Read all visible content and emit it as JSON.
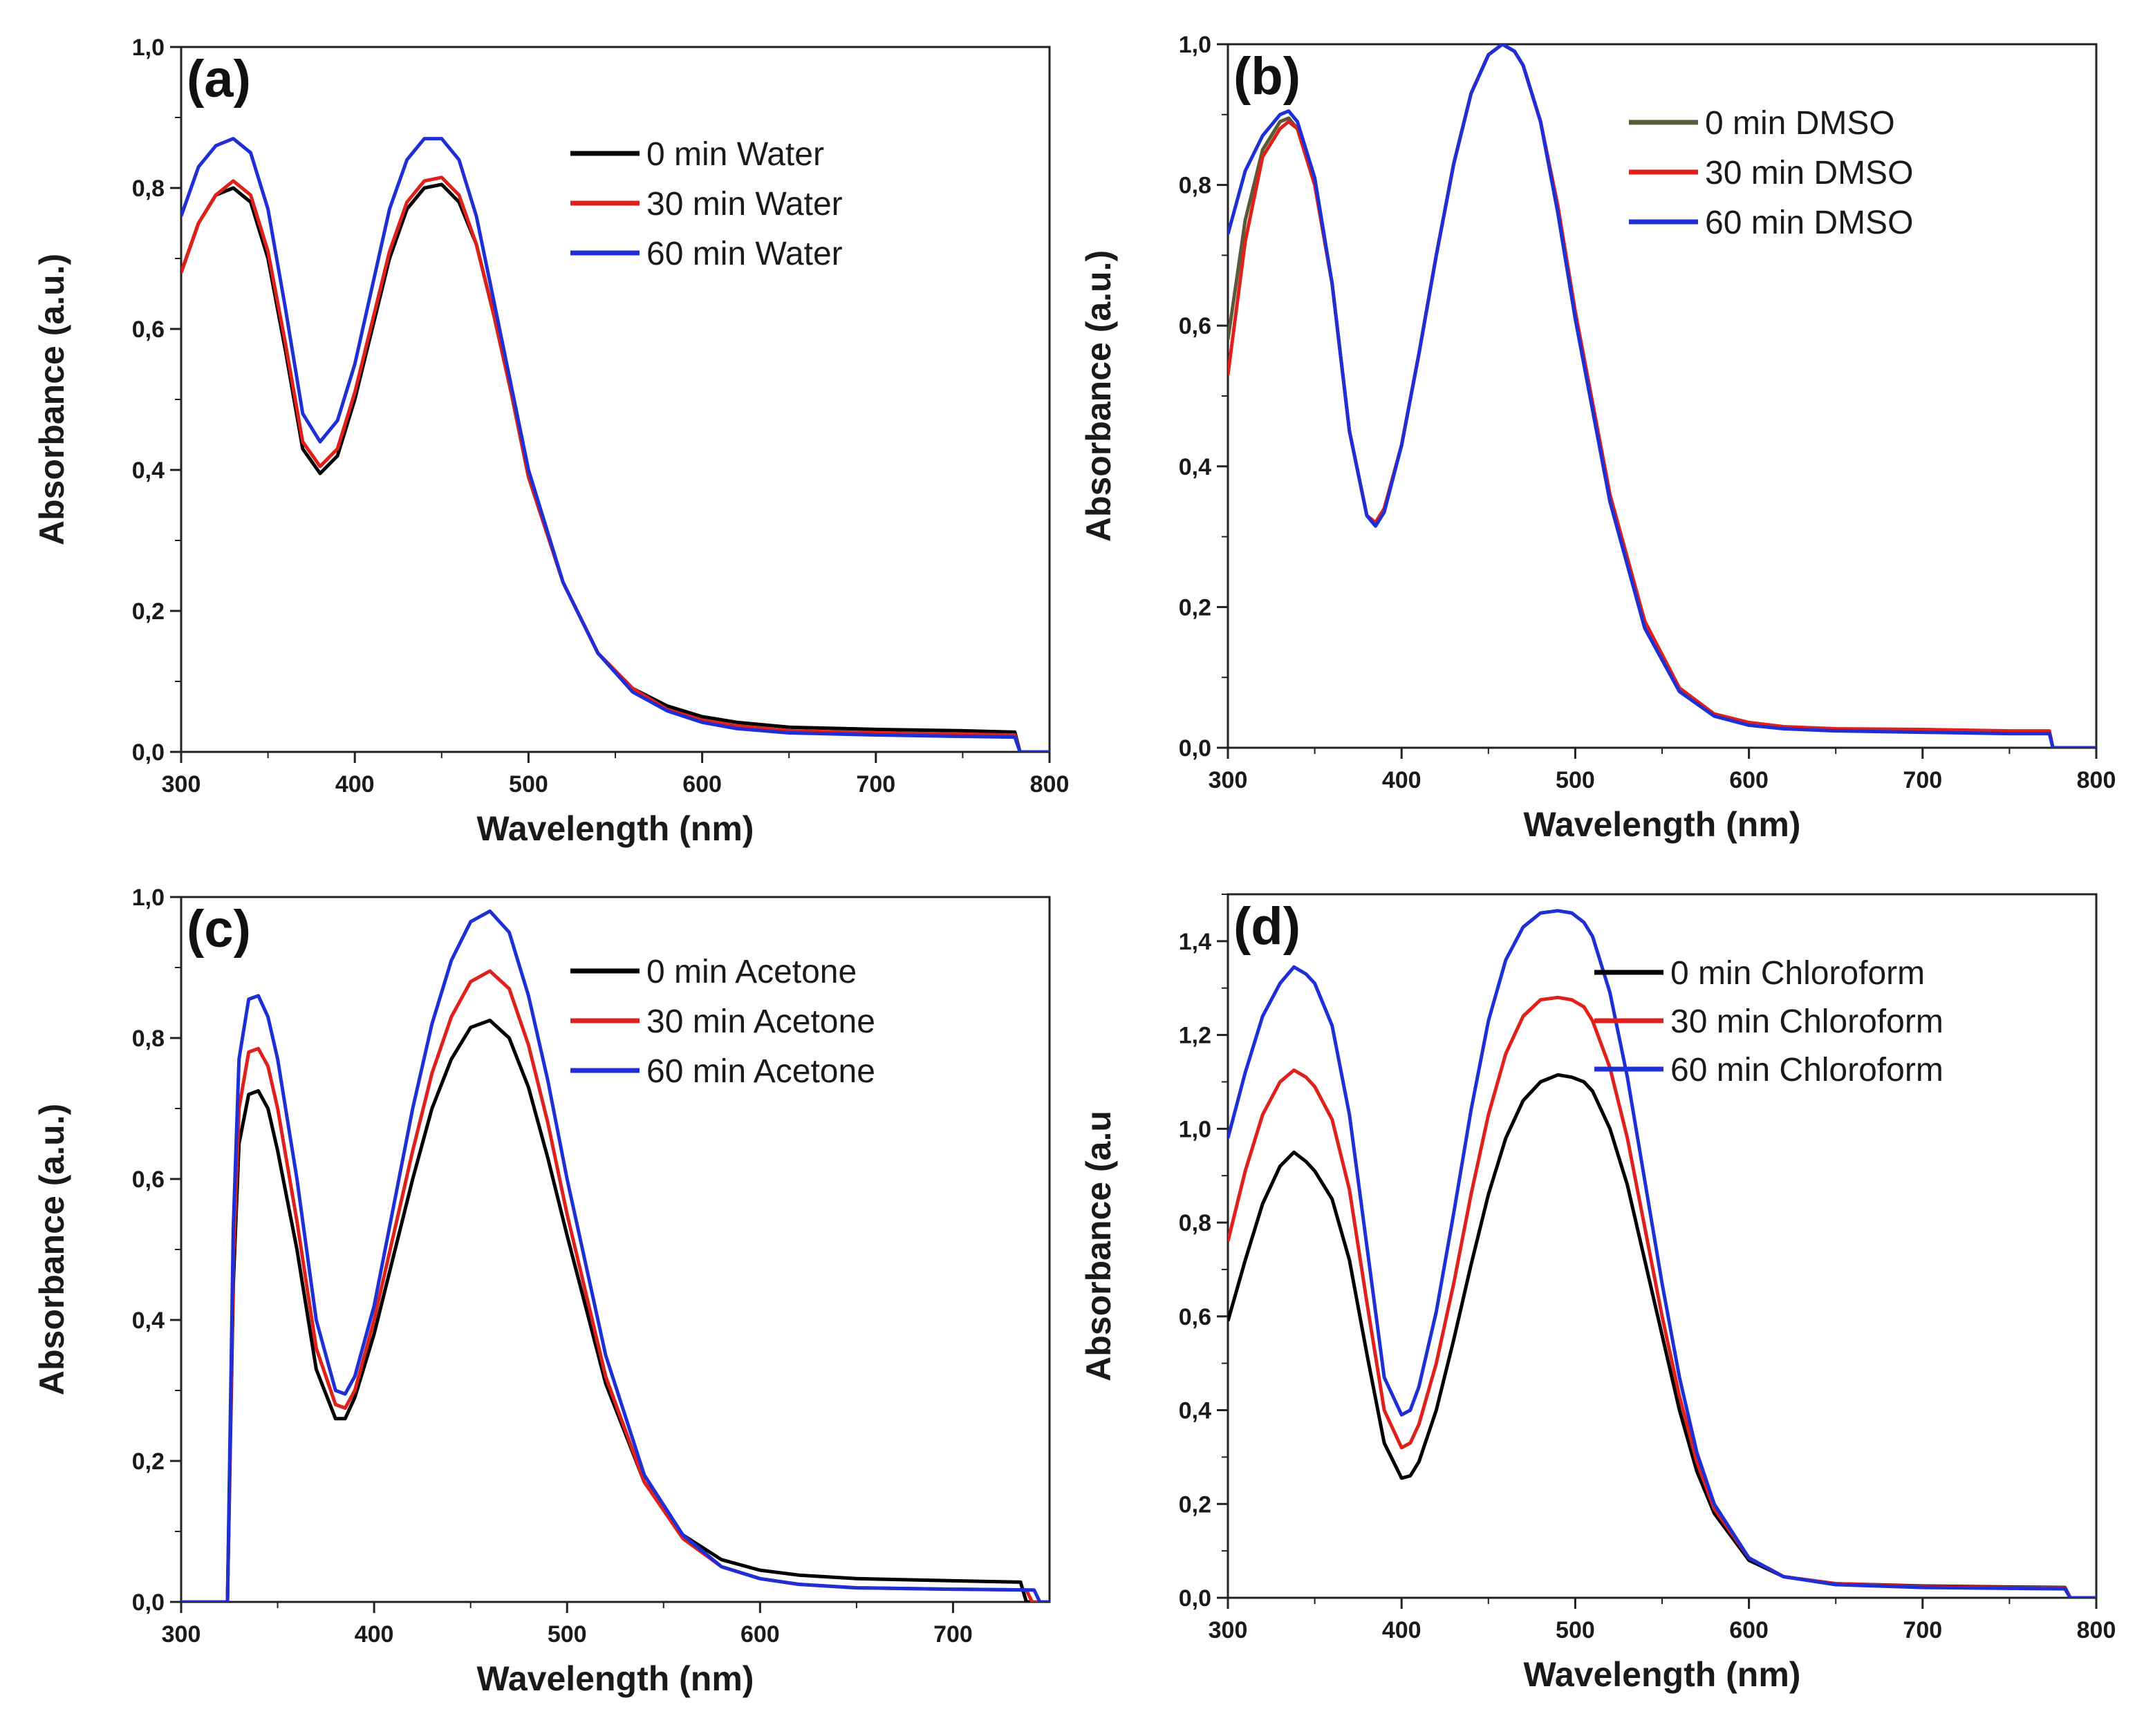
{
  "chart_data": [
    {
      "type": "line",
      "panel_label": "(a)",
      "xlabel": "Wavelength (nm)",
      "ylabel": "Absorbance (a.u.)",
      "xlim": [
        300,
        800
      ],
      "ylim": [
        0,
        1.0
      ],
      "x_ticks": [
        "300",
        "400",
        "500",
        "600",
        "700",
        "800"
      ],
      "x_tick_values": [
        300,
        400,
        500,
        600,
        700,
        800
      ],
      "y_ticks": [
        "0,0",
        "0,2",
        "0,4",
        "0,6",
        "0,8",
        "1,0"
      ],
      "y_tick_values": [
        0,
        0.2,
        0.4,
        0.6,
        0.8,
        1.0
      ],
      "legend_position": "top-right",
      "series": [
        {
          "name": "0 min Water",
          "color": "#000000",
          "x": [
            300,
            310,
            320,
            330,
            340,
            350,
            360,
            370,
            380,
            390,
            400,
            410,
            420,
            430,
            440,
            450,
            460,
            470,
            480,
            490,
            500,
            520,
            540,
            560,
            580,
            600,
            620,
            650,
            700,
            750,
            780,
            783,
            800
          ],
          "values": [
            0.68,
            0.75,
            0.79,
            0.8,
            0.78,
            0.7,
            0.57,
            0.43,
            0.395,
            0.42,
            0.5,
            0.6,
            0.7,
            0.77,
            0.8,
            0.805,
            0.78,
            0.72,
            0.62,
            0.51,
            0.39,
            0.24,
            0.14,
            0.09,
            0.065,
            0.05,
            0.042,
            0.035,
            0.032,
            0.03,
            0.028,
            0.0,
            0.0
          ]
        },
        {
          "name": "30 min Water",
          "color": "#e0201b",
          "x": [
            300,
            310,
            320,
            330,
            340,
            350,
            360,
            370,
            380,
            390,
            400,
            410,
            420,
            430,
            440,
            450,
            460,
            470,
            480,
            490,
            500,
            520,
            540,
            560,
            580,
            600,
            620,
            650,
            700,
            750,
            780,
            783,
            800
          ],
          "values": [
            0.68,
            0.75,
            0.79,
            0.81,
            0.79,
            0.71,
            0.58,
            0.44,
            0.405,
            0.43,
            0.51,
            0.61,
            0.71,
            0.78,
            0.81,
            0.815,
            0.79,
            0.72,
            0.62,
            0.51,
            0.39,
            0.24,
            0.14,
            0.09,
            0.06,
            0.045,
            0.037,
            0.03,
            0.027,
            0.025,
            0.024,
            0.0,
            0.0
          ]
        },
        {
          "name": "60 min Water",
          "color": "#1f2fd6",
          "x": [
            300,
            310,
            320,
            330,
            340,
            350,
            360,
            370,
            380,
            390,
            400,
            410,
            420,
            430,
            440,
            450,
            460,
            470,
            480,
            490,
            500,
            520,
            540,
            560,
            580,
            600,
            620,
            650,
            700,
            750,
            780,
            783,
            800
          ],
          "values": [
            0.76,
            0.83,
            0.86,
            0.87,
            0.85,
            0.77,
            0.63,
            0.48,
            0.44,
            0.47,
            0.55,
            0.66,
            0.77,
            0.84,
            0.87,
            0.87,
            0.84,
            0.76,
            0.64,
            0.52,
            0.4,
            0.24,
            0.14,
            0.085,
            0.058,
            0.042,
            0.033,
            0.027,
            0.024,
            0.022,
            0.021,
            0.0,
            0.0
          ]
        }
      ]
    },
    {
      "type": "line",
      "panel_label": "(b)",
      "xlabel": "Wavelength (nm)",
      "ylabel": "Absorbance (a.u.)",
      "xlim": [
        300,
        800
      ],
      "ylim": [
        0,
        1.0
      ],
      "x_ticks": [
        "300",
        "400",
        "500",
        "600",
        "700",
        "800"
      ],
      "x_tick_values": [
        300,
        400,
        500,
        600,
        700,
        800
      ],
      "y_ticks": [
        "0,0",
        "0,2",
        "0,4",
        "0,6",
        "0,8",
        "1,0"
      ],
      "y_tick_values": [
        0,
        0.2,
        0.4,
        0.6,
        0.8,
        1.0
      ],
      "legend_position": "top-right",
      "series": [
        {
          "name": "0 min DMSO",
          "color": "#5a5a3a",
          "x": [
            300,
            310,
            320,
            330,
            335,
            340,
            350,
            360,
            370,
            380,
            385,
            390,
            400,
            410,
            420,
            430,
            440,
            450,
            458,
            465,
            470,
            480,
            490,
            500,
            520,
            540,
            560,
            580,
            600,
            620,
            650,
            700,
            750,
            773,
            775,
            800
          ],
          "values": [
            0.58,
            0.75,
            0.85,
            0.89,
            0.895,
            0.88,
            0.8,
            0.66,
            0.45,
            0.33,
            0.32,
            0.34,
            0.43,
            0.56,
            0.7,
            0.83,
            0.93,
            0.985,
            1.0,
            0.99,
            0.97,
            0.89,
            0.76,
            0.61,
            0.35,
            0.17,
            0.08,
            0.045,
            0.033,
            0.028,
            0.025,
            0.024,
            0.022,
            0.022,
            0.0,
            0.0
          ]
        },
        {
          "name": "30 min DMSO",
          "color": "#e0201b",
          "x": [
            300,
            310,
            320,
            330,
            335,
            340,
            350,
            360,
            370,
            380,
            385,
            390,
            400,
            410,
            420,
            430,
            440,
            450,
            458,
            465,
            470,
            480,
            490,
            500,
            520,
            540,
            560,
            580,
            600,
            620,
            650,
            700,
            750,
            773,
            775,
            800
          ],
          "values": [
            0.53,
            0.72,
            0.84,
            0.88,
            0.89,
            0.88,
            0.8,
            0.66,
            0.45,
            0.33,
            0.32,
            0.34,
            0.43,
            0.56,
            0.7,
            0.83,
            0.93,
            0.985,
            1.0,
            0.99,
            0.97,
            0.89,
            0.77,
            0.62,
            0.36,
            0.18,
            0.085,
            0.048,
            0.036,
            0.03,
            0.027,
            0.026,
            0.024,
            0.024,
            0.0,
            0.0
          ]
        },
        {
          "name": "60 min DMSO",
          "color": "#1f2fd6",
          "x": [
            300,
            310,
            320,
            330,
            335,
            340,
            350,
            360,
            370,
            380,
            385,
            390,
            400,
            410,
            420,
            430,
            440,
            450,
            458,
            465,
            470,
            480,
            490,
            500,
            520,
            540,
            560,
            580,
            600,
            620,
            650,
            700,
            750,
            773,
            775,
            800
          ],
          "values": [
            0.73,
            0.82,
            0.87,
            0.9,
            0.905,
            0.89,
            0.81,
            0.66,
            0.45,
            0.33,
            0.315,
            0.335,
            0.43,
            0.56,
            0.7,
            0.83,
            0.93,
            0.985,
            1.0,
            0.99,
            0.97,
            0.89,
            0.76,
            0.61,
            0.35,
            0.17,
            0.08,
            0.045,
            0.032,
            0.027,
            0.024,
            0.022,
            0.02,
            0.02,
            0.0,
            0.0
          ]
        }
      ]
    },
    {
      "type": "line",
      "panel_label": "(c)",
      "xlabel": "Wavelength (nm)",
      "ylabel": "Absorbance (a.u.)",
      "xlim": [
        300,
        750
      ],
      "ylim": [
        0,
        1.0
      ],
      "x_ticks": [
        "300",
        "400",
        "500",
        "600",
        "700"
      ],
      "x_tick_values": [
        300,
        400,
        500,
        600,
        700
      ],
      "y_ticks": [
        "0,0",
        "0,2",
        "0,4",
        "0,6",
        "0,8",
        "1,0"
      ],
      "y_tick_values": [
        0,
        0.2,
        0.4,
        0.6,
        0.8,
        1.0
      ],
      "legend_position": "top-right",
      "series": [
        {
          "name": "0 min Acetone",
          "color": "#000000",
          "x": [
            300,
            324,
            327,
            330,
            335,
            340,
            345,
            350,
            360,
            370,
            380,
            385,
            390,
            400,
            410,
            420,
            430,
            440,
            450,
            460,
            470,
            480,
            490,
            500,
            520,
            540,
            560,
            580,
            600,
            620,
            650,
            700,
            735,
            738,
            750
          ],
          "values": [
            0.0,
            0.0,
            0.45,
            0.65,
            0.72,
            0.725,
            0.7,
            0.64,
            0.5,
            0.33,
            0.26,
            0.26,
            0.29,
            0.38,
            0.49,
            0.6,
            0.7,
            0.77,
            0.815,
            0.825,
            0.8,
            0.73,
            0.63,
            0.52,
            0.31,
            0.17,
            0.095,
            0.06,
            0.045,
            0.038,
            0.033,
            0.03,
            0.028,
            0.0,
            0.0
          ]
        },
        {
          "name": "30 min Acetone",
          "color": "#e0201b",
          "x": [
            300,
            324,
            327,
            330,
            335,
            340,
            345,
            350,
            360,
            370,
            380,
            385,
            390,
            400,
            410,
            420,
            430,
            440,
            450,
            460,
            470,
            480,
            490,
            500,
            520,
            540,
            560,
            580,
            600,
            620,
            650,
            700,
            738,
            741,
            750
          ],
          "values": [
            0.0,
            0.0,
            0.48,
            0.7,
            0.78,
            0.785,
            0.76,
            0.7,
            0.54,
            0.36,
            0.28,
            0.275,
            0.3,
            0.4,
            0.52,
            0.64,
            0.75,
            0.83,
            0.88,
            0.895,
            0.87,
            0.79,
            0.68,
            0.55,
            0.32,
            0.17,
            0.09,
            0.05,
            0.033,
            0.025,
            0.02,
            0.018,
            0.017,
            0.0,
            0.0
          ]
        },
        {
          "name": "60 min Acetone",
          "color": "#1f2fd6",
          "x": [
            300,
            324,
            327,
            330,
            335,
            340,
            345,
            350,
            360,
            370,
            380,
            385,
            390,
            400,
            410,
            420,
            430,
            440,
            450,
            460,
            470,
            480,
            490,
            500,
            520,
            540,
            560,
            580,
            600,
            620,
            650,
            700,
            742,
            745,
            750
          ],
          "values": [
            0.0,
            0.0,
            0.53,
            0.77,
            0.855,
            0.86,
            0.83,
            0.77,
            0.6,
            0.4,
            0.3,
            0.295,
            0.32,
            0.42,
            0.56,
            0.7,
            0.82,
            0.91,
            0.965,
            0.98,
            0.95,
            0.86,
            0.74,
            0.6,
            0.35,
            0.18,
            0.095,
            0.05,
            0.033,
            0.025,
            0.02,
            0.018,
            0.017,
            0.0,
            0.0
          ]
        }
      ]
    },
    {
      "type": "line",
      "panel_label": "(d)",
      "xlabel": "Wavelength (nm)",
      "ylabel": "Absorbance (a.u",
      "xlim": [
        300,
        800
      ],
      "ylim": [
        0,
        1.5
      ],
      "x_ticks": [
        "300",
        "400",
        "500",
        "600",
        "700",
        "800"
      ],
      "x_tick_values": [
        300,
        400,
        500,
        600,
        700,
        800
      ],
      "y_ticks": [
        "0,0",
        "0,2",
        "0,4",
        "0,6",
        "0,8",
        "1,0",
        "1,2",
        "1,4"
      ],
      "y_tick_values": [
        0,
        0.2,
        0.4,
        0.6,
        0.8,
        1.0,
        1.2,
        1.4
      ],
      "legend_position": "top-right",
      "series": [
        {
          "name": "0 min Chloroform",
          "color": "#000000",
          "x": [
            300,
            310,
            320,
            330,
            338,
            345,
            350,
            360,
            370,
            380,
            390,
            400,
            405,
            410,
            420,
            430,
            440,
            450,
            460,
            470,
            480,
            490,
            498,
            505,
            510,
            520,
            530,
            540,
            550,
            560,
            570,
            580,
            600,
            620,
            650,
            700,
            750,
            782,
            785,
            800
          ],
          "values": [
            0.59,
            0.72,
            0.84,
            0.92,
            0.95,
            0.93,
            0.91,
            0.85,
            0.72,
            0.52,
            0.33,
            0.255,
            0.26,
            0.29,
            0.4,
            0.55,
            0.71,
            0.86,
            0.98,
            1.06,
            1.1,
            1.115,
            1.11,
            1.1,
            1.08,
            1.0,
            0.88,
            0.72,
            0.56,
            0.4,
            0.27,
            0.18,
            0.08,
            0.045,
            0.03,
            0.025,
            0.023,
            0.022,
            0.0,
            0.0
          ]
        },
        {
          "name": "30 min Chloroform",
          "color": "#e0201b",
          "x": [
            300,
            310,
            320,
            330,
            338,
            345,
            350,
            360,
            370,
            380,
            390,
            400,
            405,
            410,
            420,
            430,
            440,
            450,
            460,
            470,
            480,
            490,
            498,
            505,
            510,
            520,
            530,
            540,
            550,
            560,
            570,
            580,
            600,
            620,
            650,
            700,
            750,
            782,
            785,
            800
          ],
          "values": [
            0.76,
            0.91,
            1.03,
            1.1,
            1.125,
            1.11,
            1.09,
            1.02,
            0.87,
            0.63,
            0.4,
            0.32,
            0.33,
            0.37,
            0.5,
            0.67,
            0.86,
            1.03,
            1.16,
            1.24,
            1.275,
            1.28,
            1.275,
            1.26,
            1.23,
            1.13,
            0.98,
            0.79,
            0.6,
            0.43,
            0.29,
            0.19,
            0.085,
            0.045,
            0.03,
            0.024,
            0.022,
            0.021,
            0.0,
            0.0
          ]
        },
        {
          "name": "60 min Chloroform",
          "color": "#1f2fd6",
          "x": [
            300,
            310,
            320,
            330,
            338,
            345,
            350,
            360,
            370,
            380,
            390,
            400,
            405,
            410,
            420,
            430,
            440,
            450,
            460,
            470,
            480,
            490,
            498,
            505,
            510,
            520,
            530,
            540,
            550,
            560,
            570,
            580,
            600,
            620,
            650,
            700,
            750,
            782,
            785,
            800
          ],
          "values": [
            0.98,
            1.12,
            1.24,
            1.31,
            1.345,
            1.33,
            1.31,
            1.22,
            1.03,
            0.75,
            0.47,
            0.39,
            0.4,
            0.45,
            0.61,
            0.82,
            1.04,
            1.23,
            1.36,
            1.43,
            1.46,
            1.465,
            1.46,
            1.44,
            1.41,
            1.29,
            1.11,
            0.89,
            0.67,
            0.47,
            0.31,
            0.2,
            0.085,
            0.045,
            0.028,
            0.022,
            0.02,
            0.019,
            0.0,
            0.0
          ]
        }
      ]
    }
  ]
}
